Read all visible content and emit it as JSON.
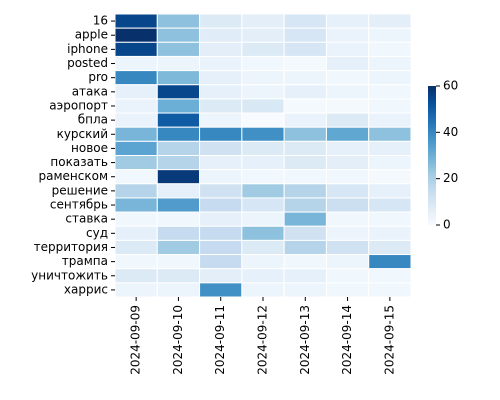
{
  "chart_data": {
    "type": "heatmap",
    "colormap": "Blues",
    "x": [
      "2024-09-09",
      "2024-09-10",
      "2024-09-11",
      "2024-09-12",
      "2024-09-13",
      "2024-09-14",
      "2024-09-15"
    ],
    "y": [
      "16",
      "apple",
      "iphone",
      "posted",
      "pro",
      "атака",
      "аэропорт",
      "бпла",
      "курский",
      "новое",
      "показать",
      "раменском",
      "решение",
      "сентябрь",
      "ставка",
      "суд",
      "территория",
      "трампа",
      "уничтожить",
      "харрис"
    ],
    "values": [
      [
        55,
        25,
        8,
        6,
        10,
        5,
        6
      ],
      [
        60,
        25,
        7,
        6,
        10,
        4,
        3
      ],
      [
        55,
        25,
        6,
        8,
        10,
        4,
        2
      ],
      [
        3,
        3,
        4,
        2,
        1,
        5,
        3
      ],
      [
        40,
        27,
        5,
        3,
        3,
        2,
        3
      ],
      [
        5,
        55,
        5,
        3,
        5,
        3,
        2
      ],
      [
        4,
        30,
        8,
        9,
        1,
        1,
        2
      ],
      [
        4,
        50,
        3,
        0,
        4,
        8,
        4
      ],
      [
        28,
        40,
        40,
        38,
        25,
        32,
        25
      ],
      [
        33,
        18,
        12,
        8,
        8,
        5,
        5
      ],
      [
        22,
        18,
        5,
        5,
        8,
        6,
        3
      ],
      [
        2,
        58,
        3,
        2,
        2,
        2,
        1
      ],
      [
        18,
        5,
        12,
        22,
        18,
        10,
        5
      ],
      [
        28,
        35,
        15,
        10,
        18,
        13,
        10
      ],
      [
        2,
        2,
        5,
        3,
        28,
        2,
        2
      ],
      [
        5,
        15,
        15,
        25,
        12,
        3,
        4
      ],
      [
        8,
        22,
        15,
        8,
        18,
        12,
        8
      ],
      [
        2,
        2,
        15,
        3,
        2,
        3,
        40
      ],
      [
        8,
        8,
        6,
        5,
        5,
        2,
        2
      ],
      [
        3,
        3,
        38,
        3,
        3,
        2,
        2
      ]
    ],
    "zlim": [
      0,
      60
    ],
    "zticks": [
      0,
      20,
      40,
      60
    ]
  }
}
